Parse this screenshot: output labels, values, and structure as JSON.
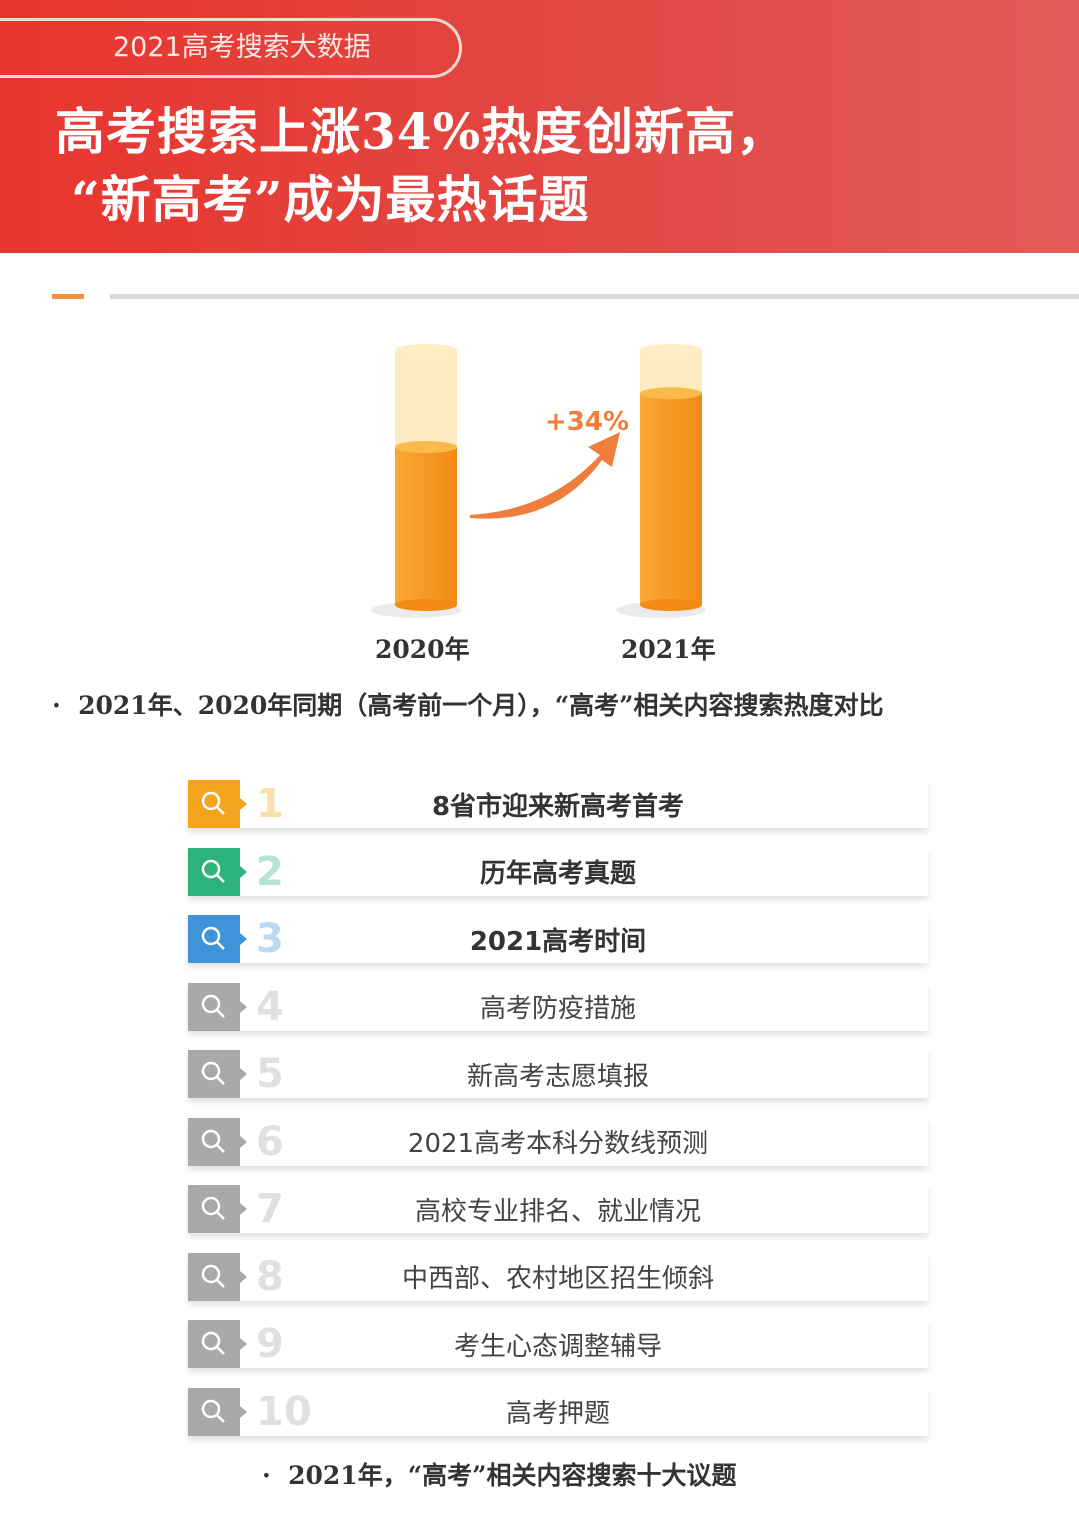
{
  "header": {
    "tag": "2021高考搜索大数据",
    "title_line1": "高考搜索上涨34%热度创新高，",
    "title_line2": "“新高考”成为最热话题"
  },
  "chart_data": {
    "type": "bar",
    "categories": [
      "2020年",
      "2021年"
    ],
    "values": [
      100,
      134
    ],
    "annotation": "+34%",
    "colors": {
      "fill": "#f7921e",
      "tube": "#fde2a6",
      "arrow": "#ef7d3c"
    }
  },
  "chart_caption": "2021年、2020年同期（高考前一个月），“高考”相关内容搜索热度对比",
  "topics": [
    {
      "rank": "1",
      "label": "8省市迎来新高考首考",
      "color": "#f3a51d",
      "bold": true
    },
    {
      "rank": "2",
      "label": "历年高考真题",
      "color": "#2db37a",
      "bold": true
    },
    {
      "rank": "3",
      "label": "2021高考时间",
      "color": "#3e93d9",
      "bold": true
    },
    {
      "rank": "4",
      "label": "高考防疫措施",
      "color": "#a9a9a9",
      "bold": false
    },
    {
      "rank": "5",
      "label": "新高考志愿填报",
      "color": "#a9a9a9",
      "bold": false
    },
    {
      "rank": "6",
      "label": "2021高考本科分数线预测",
      "color": "#a9a9a9",
      "bold": false
    },
    {
      "rank": "7",
      "label": "高校专业排名、就业情况",
      "color": "#a9a9a9",
      "bold": false
    },
    {
      "rank": "8",
      "label": "中西部、农村地区招生倾斜",
      "color": "#a9a9a9",
      "bold": false
    },
    {
      "rank": "9",
      "label": "考生心态调整辅导",
      "color": "#a9a9a9",
      "bold": false
    },
    {
      "rank": "10",
      "label": "高考押题",
      "color": "#a9a9a9",
      "bold": false
    }
  ],
  "list_caption": "2021年，“高考”相关内容搜索十大议题"
}
